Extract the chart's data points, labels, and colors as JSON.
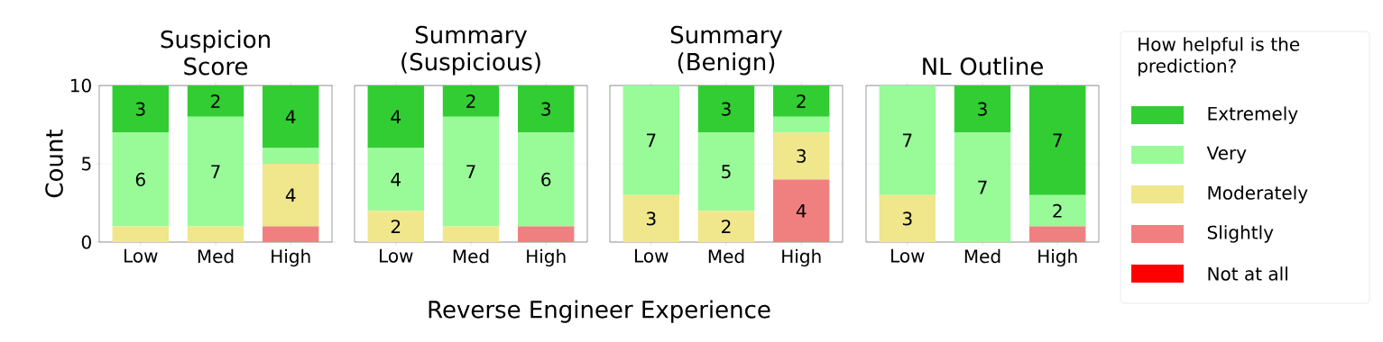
{
  "chart_data": [
    {
      "type": "bar",
      "title": "Suspicion Score",
      "ylabel": "Count",
      "xlabel": "Reverse Engineer Experience",
      "categories": [
        "Low",
        "Med",
        "High"
      ],
      "stacked": true,
      "ylim": [
        0,
        10
      ],
      "yticks": [
        0,
        5,
        10
      ],
      "grid": "y",
      "series": [
        {
          "color": "#ff0000",
          "values": [
            0,
            0,
            0
          ]
        },
        {
          "color": "#f08080",
          "values": [
            0,
            0,
            1
          ]
        },
        {
          "color": "#f0e68c",
          "values": [
            1,
            1,
            4
          ],
          "value_labels": [
            null,
            null,
            "4"
          ]
        },
        {
          "color": "#98fb98",
          "values": [
            6,
            7,
            1
          ],
          "value_labels": [
            "6",
            "7",
            null
          ]
        },
        {
          "color": "#32cd32",
          "values": [
            3,
            2,
            4
          ],
          "value_labels": [
            "3",
            "2",
            "4"
          ]
        }
      ]
    },
    {
      "type": "bar",
      "title": "Summary (Suspicious)",
      "categories": [
        "Low",
        "Med",
        "High"
      ],
      "stacked": true,
      "ylim": [
        0,
        10
      ],
      "yticks": [
        0,
        5,
        10
      ],
      "grid": "y",
      "tick_labels": "x",
      "series": [
        {
          "color": "#ff0000",
          "values": [
            0,
            0,
            0
          ]
        },
        {
          "color": "#f08080",
          "values": [
            0,
            0,
            1
          ]
        },
        {
          "color": "#f0e68c",
          "values": [
            2,
            1,
            0
          ],
          "value_labels": [
            "2",
            null,
            null
          ]
        },
        {
          "color": "#98fb98",
          "values": [
            4,
            7,
            6
          ],
          "value_labels": [
            "4",
            "7",
            "6"
          ]
        },
        {
          "color": "#32cd32",
          "values": [
            4,
            2,
            3
          ],
          "value_labels": [
            "4",
            "2",
            "3"
          ]
        }
      ]
    },
    {
      "type": "bar",
      "title": "Summary (Benign)",
      "categories": [
        "Low",
        "Med",
        "High"
      ],
      "stacked": true,
      "ylim": [
        0,
        10
      ],
      "yticks": [
        0,
        5,
        10
      ],
      "grid": "y",
      "tick_labels": "x",
      "series": [
        {
          "color": "#ff0000",
          "values": [
            0,
            0,
            0
          ]
        },
        {
          "color": "#f08080",
          "values": [
            0,
            0,
            4
          ],
          "value_labels": [
            null,
            null,
            "4"
          ]
        },
        {
          "color": "#f0e68c",
          "values": [
            3,
            2,
            3
          ],
          "value_labels": [
            "3",
            "2",
            "3"
          ]
        },
        {
          "color": "#98fb98",
          "values": [
            7,
            5,
            1
          ],
          "value_labels": [
            "7",
            "5",
            null
          ]
        },
        {
          "color": "#32cd32",
          "values": [
            0,
            3,
            2
          ],
          "value_labels": [
            null,
            "3",
            "2"
          ]
        }
      ]
    },
    {
      "type": "bar",
      "title": "NL Outline",
      "legend_title": "How helpful is the prediction?",
      "legend": "right",
      "categories": [
        "Low",
        "Med",
        "High"
      ],
      "stacked": true,
      "ylim": [
        0,
        10
      ],
      "yticks": [
        0,
        5,
        10
      ],
      "grid": "y",
      "tick_labels": "x",
      "series": [
        {
          "name": "Not at all",
          "color": "#ff0000",
          "values": [
            0,
            0,
            0
          ]
        },
        {
          "name": "Slightly",
          "color": "#f08080",
          "values": [
            0,
            0,
            1
          ]
        },
        {
          "name": "Moderately",
          "color": "#f0e68c",
          "values": [
            3,
            0,
            0
          ],
          "value_labels": [
            "3",
            null,
            null
          ]
        },
        {
          "name": "Very",
          "color": "#98fb98",
          "values": [
            7,
            7,
            2
          ],
          "value_labels": [
            "7",
            "7",
            "2"
          ]
        },
        {
          "name": "Extremely",
          "color": "#32cd32",
          "values": [
            0,
            3,
            7
          ],
          "value_labels": [
            null,
            "3",
            "7"
          ]
        }
      ]
    }
  ]
}
